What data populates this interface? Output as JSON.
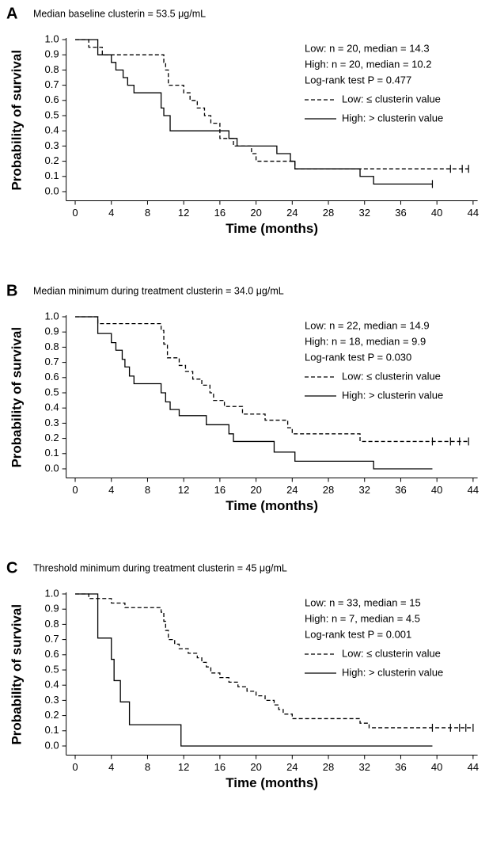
{
  "chart_data": [
    {
      "type": "step",
      "panel": "A",
      "title": "Median baseline clusterin = 53.5 μg/mL",
      "annotations": [
        "Low: n = 20, median = 14.3",
        "High: n = 20, median = 10.2",
        "Log-rank test P = 0.477"
      ],
      "x_label": "Time (months)",
      "y_label": "Probability of survival",
      "xlim": [
        -1,
        44.5
      ],
      "ylim": [
        -0.06,
        1
      ],
      "xticks": [
        0,
        4,
        8,
        12,
        16,
        20,
        24,
        28,
        32,
        36,
        40,
        44
      ],
      "yticks": [
        {
          "value": 0,
          "label": "0.0"
        },
        0.1,
        0.2,
        0.3,
        0.4,
        0.5,
        0.6,
        0.7,
        0.8,
        0.9,
        {
          "value": 1,
          "label": "1.0"
        }
      ],
      "series": [
        {
          "name": "Low: ≤ clusterin value",
          "color": "#000000",
          "dash": true,
          "x": [
            0,
            1.5,
            3,
            9.8,
            10,
            10.3,
            12,
            12.7,
            13.5,
            14.3,
            15,
            16,
            17.5,
            19.5,
            20,
            24.3,
            43.5
          ],
          "values": [
            1,
            0.95,
            0.9,
            0.85,
            0.8,
            0.7,
            0.65,
            0.6,
            0.55,
            0.5,
            0.45,
            0.35,
            0.3,
            0.25,
            0.2,
            0.15,
            0.15
          ],
          "censored": [
            41.5,
            42.8,
            43.5
          ]
        },
        {
          "name": "High: > clusterin value",
          "color": "#000000",
          "dash": false,
          "x": [
            0,
            2.5,
            4,
            4.5,
            5.3,
            5.8,
            6.5,
            9.5,
            9.8,
            10.5,
            17,
            17.9,
            22.3,
            23.8,
            24.3,
            31.5,
            33,
            39.5
          ],
          "values": [
            1,
            0.9,
            0.85,
            0.8,
            0.75,
            0.7,
            0.65,
            0.55,
            0.5,
            0.4,
            0.35,
            0.3,
            0.25,
            0.2,
            0.15,
            0.1,
            0.05,
            0.05
          ],
          "censored": [
            39.5
          ]
        }
      ]
    },
    {
      "type": "step",
      "panel": "B",
      "title": "Median minimum during treatment clusterin = 34.0 μg/mL",
      "annotations": [
        "Low: n = 22, median = 14.9",
        "High: n = 18, median = 9.9",
        "Log-rank test P = 0.030"
      ],
      "x_label": "Time (months)",
      "y_label": "Probability of survival",
      "xlim": [
        -1,
        44.5
      ],
      "ylim": [
        -0.06,
        1
      ],
      "xticks": [
        0,
        4,
        8,
        12,
        16,
        20,
        24,
        28,
        32,
        36,
        40,
        44
      ],
      "yticks": [
        {
          "value": 0,
          "label": "0.0"
        },
        0.1,
        0.2,
        0.3,
        0.4,
        0.5,
        0.6,
        0.7,
        0.8,
        0.9,
        {
          "value": 1,
          "label": "1.0"
        }
      ],
      "series": [
        {
          "name": "Low: ≤ clusterin value",
          "color": "#000000",
          "dash": true,
          "x": [
            0,
            2.5,
            9.5,
            9.8,
            10.2,
            11.5,
            12.2,
            13,
            14,
            14.9,
            15.3,
            16.5,
            18.5,
            21,
            23.5,
            24,
            31.5,
            43.5
          ],
          "values": [
            1,
            0.955,
            0.91,
            0.82,
            0.73,
            0.68,
            0.64,
            0.59,
            0.55,
            0.5,
            0.45,
            0.41,
            0.36,
            0.32,
            0.27,
            0.23,
            0.18,
            0.18
          ],
          "censored": [
            39.5,
            41.5,
            42.5,
            43.5
          ]
        },
        {
          "name": "High: > clusterin value",
          "color": "#000000",
          "dash": false,
          "x": [
            0,
            2.5,
            4,
            4.5,
            5.2,
            5.5,
            6,
            6.5,
            9.5,
            10,
            10.5,
            11.5,
            14.5,
            17,
            17.5,
            22,
            24.3,
            33,
            39.5
          ],
          "values": [
            1,
            0.89,
            0.83,
            0.78,
            0.72,
            0.67,
            0.61,
            0.56,
            0.5,
            0.44,
            0.39,
            0.35,
            0.29,
            0.23,
            0.18,
            0.11,
            0.05,
            0,
            0
          ],
          "censored": []
        }
      ]
    },
    {
      "type": "step",
      "panel": "C",
      "title": "Threshold minimum during treatment clusterin = 45 μg/mL",
      "annotations": [
        "Low: n = 33, median = 15",
        "High: n = 7, median = 4.5",
        "Log-rank test P = 0.001"
      ],
      "x_label": "Time (months)",
      "y_label": "Probability of survival",
      "xlim": [
        -1,
        44.5
      ],
      "ylim": [
        -0.06,
        1
      ],
      "xticks": [
        0,
        4,
        8,
        12,
        16,
        20,
        24,
        28,
        32,
        36,
        40,
        44
      ],
      "yticks": [
        {
          "value": 0,
          "label": "0.0"
        },
        0.1,
        0.2,
        0.3,
        0.4,
        0.5,
        0.6,
        0.7,
        0.8,
        0.9,
        {
          "value": 1,
          "label": "1.0"
        }
      ],
      "series": [
        {
          "name": "Low: ≤ clusterin value",
          "color": "#000000",
          "dash": true,
          "x": [
            0,
            1.5,
            4,
            5.5,
            9.5,
            9.8,
            10,
            10.3,
            11,
            11.5,
            12.5,
            13.5,
            14,
            14.5,
            15,
            16,
            17,
            18,
            19,
            20,
            21,
            22,
            22.5,
            23,
            24,
            31.5,
            32.5,
            44
          ],
          "values": [
            1,
            0.97,
            0.94,
            0.91,
            0.88,
            0.82,
            0.76,
            0.7,
            0.67,
            0.64,
            0.61,
            0.58,
            0.55,
            0.52,
            0.48,
            0.45,
            0.42,
            0.39,
            0.36,
            0.33,
            0.3,
            0.27,
            0.24,
            0.21,
            0.18,
            0.15,
            0.12,
            0.12
          ],
          "censored": [
            39.5,
            41.5,
            42.5,
            43.2,
            44
          ]
        },
        {
          "name": "High: > clusterin value",
          "color": "#000000",
          "dash": false,
          "x": [
            0,
            2.5,
            4,
            4.3,
            5,
            6,
            11.7,
            39.5
          ],
          "values": [
            1,
            0.71,
            0.57,
            0.43,
            0.29,
            0.14,
            0,
            0
          ],
          "censored": []
        }
      ]
    }
  ]
}
